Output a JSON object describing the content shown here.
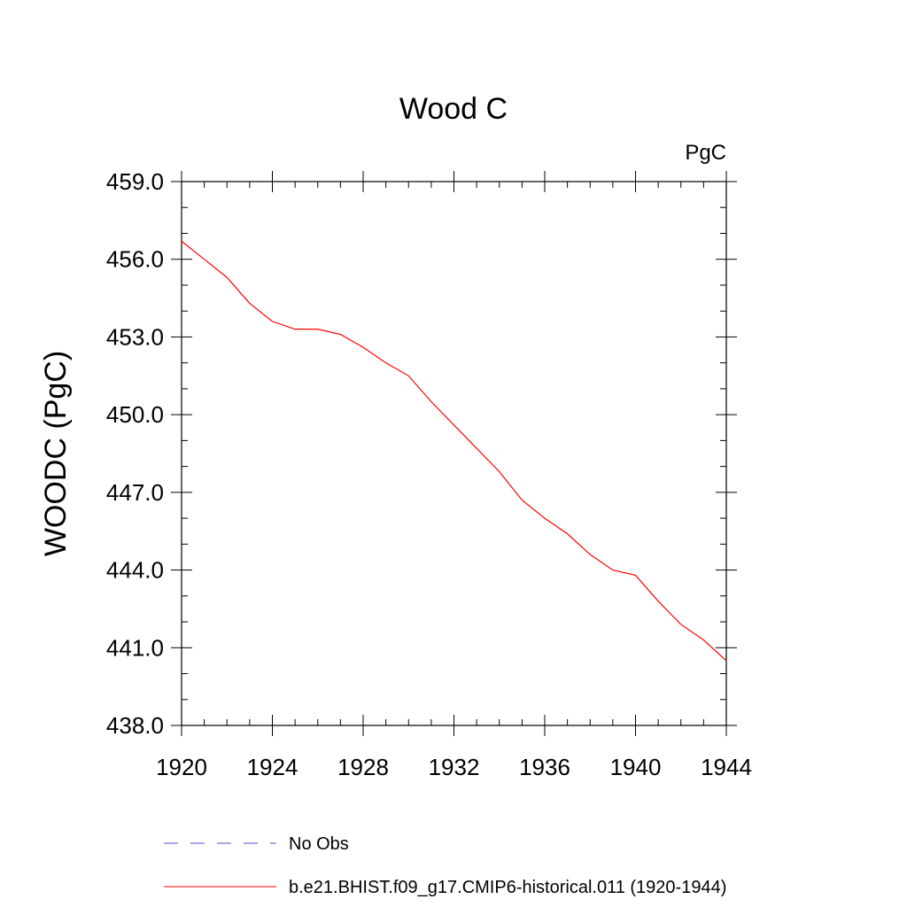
{
  "chart_data": {
    "type": "line",
    "title": "Wood C",
    "units": "PgC",
    "xlabel": "",
    "ylabel": "WOODC  (PgC)",
    "xlim": [
      1920,
      1944
    ],
    "ylim": [
      438.0,
      459.0
    ],
    "x_ticks": [
      "1920",
      "1924",
      "1928",
      "1932",
      "1936",
      "1940",
      "1944"
    ],
    "y_ticks": [
      "438.0",
      "441.0",
      "444.0",
      "447.0",
      "450.0",
      "453.0",
      "456.0",
      "459.0"
    ],
    "grid": false,
    "legend": {
      "placement": "bottom-left",
      "entries": [
        {
          "label": "No Obs",
          "color": "#5a4fc4",
          "style": "dashed"
        },
        {
          "label": "b.e21.BHIST.f09_g17.CMIP6-historical.011 (1920-1944)",
          "color": "#ff0000",
          "style": "solid"
        }
      ]
    },
    "series": [
      {
        "color": "#ff0000",
        "x": [
          1920,
          1921,
          1922,
          1923,
          1924,
          1925,
          1926,
          1927,
          1928,
          1929,
          1930,
          1931,
          1932,
          1933,
          1934,
          1935,
          1936,
          1937,
          1938,
          1939,
          1940,
          1941,
          1942,
          1943,
          1944
        ],
        "values": [
          456.7,
          456.0,
          455.3,
          454.3,
          453.6,
          453.3,
          453.3,
          453.1,
          452.6,
          452.0,
          451.5,
          450.5,
          449.6,
          448.7,
          447.8,
          446.7,
          446.0,
          445.4,
          444.6,
          444.0,
          443.8,
          442.8,
          441.9,
          441.3,
          440.5
        ]
      }
    ]
  }
}
